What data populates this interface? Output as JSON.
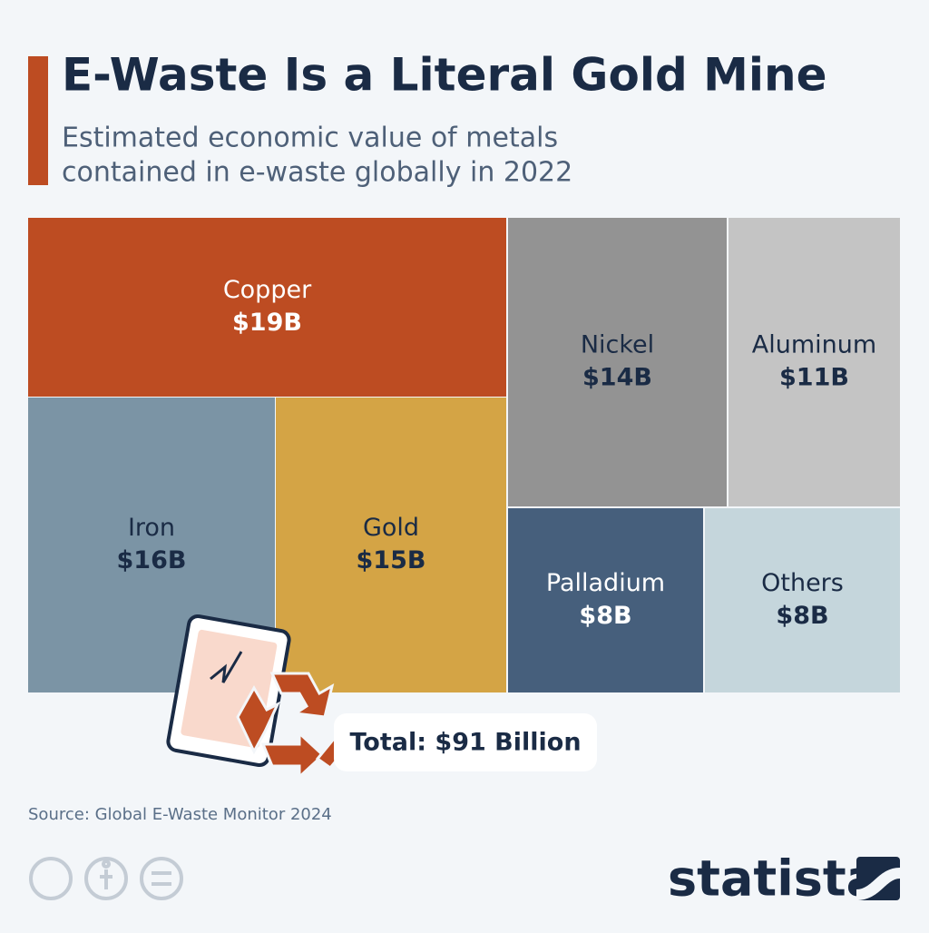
{
  "chart_data": {
    "type": "treemap",
    "title": "E-Waste Is a Literal Gold Mine",
    "subtitle": [
      "Estimated economic value of metals",
      "contained in e-waste globally in 2022"
    ],
    "categories": [
      "Copper",
      "Iron",
      "Gold",
      "Nickel",
      "Aluminum",
      "Palladium",
      "Others"
    ],
    "values": [
      19,
      16,
      15,
      14,
      11,
      8,
      8
    ],
    "value_labels": [
      "$19B",
      "$16B",
      "$15B",
      "$14B",
      "$11B",
      "$8B",
      "$8B"
    ],
    "colors": [
      "#bd4c22",
      "#7b94a5",
      "#d4a445",
      "#939393",
      "#c4c4c4",
      "#465f7c",
      "#c5d6dc"
    ],
    "label_colors": [
      "#ffffff",
      "#1a2b45",
      "#1a2b45",
      "#1a2b45",
      "#1a2b45",
      "#ffffff",
      "#1a2b45"
    ],
    "annotation": "Total: $91 Billion",
    "source": "Source: Global E-Waste Monitor 2024",
    "brand": "statista"
  }
}
